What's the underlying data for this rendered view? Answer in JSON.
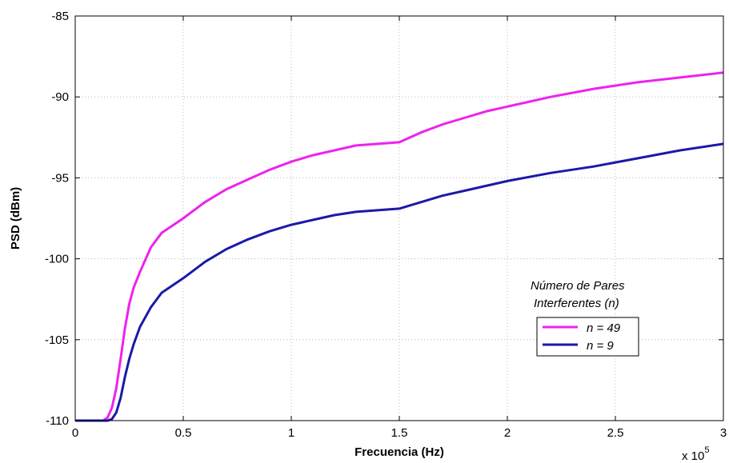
{
  "chart_data": {
    "type": "line",
    "xlabel": "Frecuencia (Hz)",
    "ylabel": "PSD (dBm)",
    "x_multiplier_label_base": "x 10",
    "x_multiplier_label_exp": "5",
    "xlim": [
      0,
      3
    ],
    "ylim": [
      -110,
      -85
    ],
    "xticks": [
      0,
      0.5,
      1,
      1.5,
      2,
      2.5,
      3
    ],
    "xtick_labels": [
      "0",
      "0.5",
      "1",
      "1.5",
      "2",
      "2.5",
      "3"
    ],
    "yticks": [
      -110,
      -105,
      -100,
      -95,
      -90,
      -85
    ],
    "ytick_labels": [
      "-110",
      "-105",
      "-100",
      "-95",
      "-90",
      "-85"
    ],
    "grid": true,
    "legend": {
      "title_line1": "Número de Pares",
      "title_line2": "Interferentes (n)",
      "placement": "right"
    },
    "series": [
      {
        "name": "n = 49",
        "color": "#ee22ee",
        "x": [
          0,
          0.1,
          0.13,
          0.15,
          0.17,
          0.19,
          0.21,
          0.23,
          0.25,
          0.27,
          0.3,
          0.35,
          0.4,
          0.5,
          0.6,
          0.7,
          0.8,
          0.9,
          1.0,
          1.1,
          1.2,
          1.3,
          1.4,
          1.5,
          1.6,
          1.7,
          1.8,
          1.9,
          2.0,
          2.2,
          2.4,
          2.6,
          2.8,
          3.0
        ],
        "y": [
          -110,
          -110,
          -110,
          -109.8,
          -109.2,
          -108,
          -106.2,
          -104.3,
          -102.8,
          -101.8,
          -100.8,
          -99.3,
          -98.4,
          -97.5,
          -96.5,
          -95.7,
          -95.1,
          -94.5,
          -94.0,
          -93.6,
          -93.3,
          -93.0,
          -92.9,
          -92.8,
          -92.2,
          -91.7,
          -91.3,
          -90.9,
          -90.6,
          -90.0,
          -89.5,
          -89.1,
          -88.8,
          -88.5
        ]
      },
      {
        "name": "n = 9",
        "color": "#1a1aa8",
        "x": [
          0,
          0.1,
          0.15,
          0.17,
          0.19,
          0.21,
          0.23,
          0.25,
          0.27,
          0.3,
          0.35,
          0.4,
          0.5,
          0.6,
          0.7,
          0.8,
          0.9,
          1.0,
          1.1,
          1.2,
          1.3,
          1.4,
          1.5,
          1.6,
          1.7,
          1.8,
          1.9,
          2.0,
          2.2,
          2.4,
          2.6,
          2.8,
          3.0
        ],
        "y": [
          -110,
          -110,
          -110,
          -109.9,
          -109.5,
          -108.6,
          -107.3,
          -106.2,
          -105.3,
          -104.2,
          -103.0,
          -102.1,
          -101.2,
          -100.2,
          -99.4,
          -98.8,
          -98.3,
          -97.9,
          -97.6,
          -97.3,
          -97.1,
          -97.0,
          -96.9,
          -96.5,
          -96.1,
          -95.8,
          -95.5,
          -95.2,
          -94.7,
          -94.3,
          -93.8,
          -93.3,
          -92.9
        ]
      }
    ]
  }
}
